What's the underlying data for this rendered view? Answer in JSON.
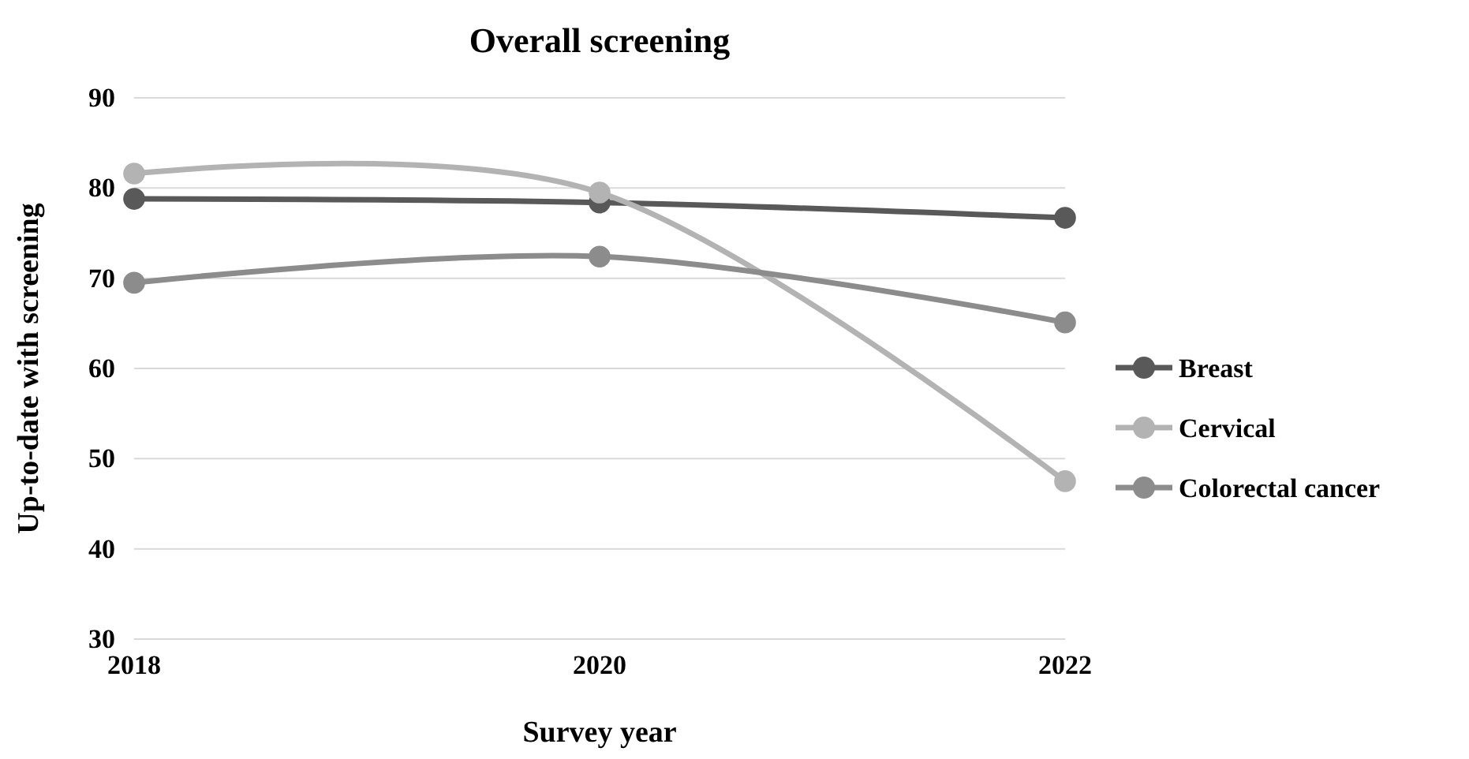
{
  "chart_data": {
    "type": "line",
    "title": "Overall screening",
    "xlabel": "Survey year",
    "ylabel": "Up-to-date with screening",
    "categories": [
      "2018",
      "2020",
      "2022"
    ],
    "series": [
      {
        "name": "Breast",
        "color": "#595959",
        "values": [
          78.8,
          78.4,
          76.7
        ]
      },
      {
        "name": "Cervical",
        "color": "#b3b3b3",
        "values": [
          81.6,
          79.5,
          47.5
        ]
      },
      {
        "name": "Colorectal cancer",
        "color": "#8c8c8c",
        "values": [
          69.5,
          72.4,
          65.1
        ]
      }
    ],
    "ylim": [
      30,
      90
    ],
    "yticks": [
      30,
      40,
      50,
      60,
      70,
      80,
      90
    ],
    "grid": "y",
    "legend": "right",
    "marker": "circle",
    "line_style": "solid"
  }
}
